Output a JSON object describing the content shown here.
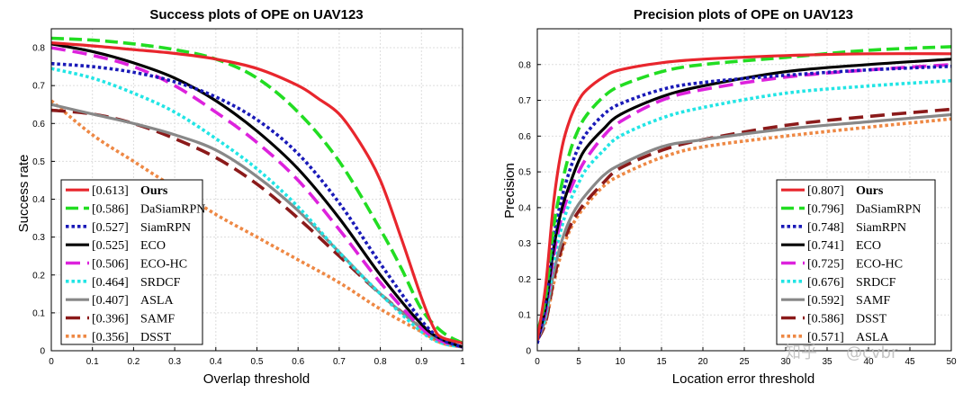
{
  "chart_data": [
    {
      "type": "line",
      "title": "Success plots of OPE on UAV123",
      "xlabel": "Overlap threshold",
      "ylabel": "Success rate",
      "xlim": [
        0,
        1
      ],
      "ylim": [
        0,
        0.85
      ],
      "xticks": [
        "0",
        "0.1",
        "0.2",
        "0.3",
        "0.4",
        "0.5",
        "0.6",
        "0.7",
        "0.8",
        "0.9",
        "1"
      ],
      "yticks": [
        "0",
        "0.1",
        "0.2",
        "0.3",
        "0.4",
        "0.5",
        "0.6",
        "0.7",
        "0.8"
      ],
      "grid": true,
      "legend_position": "bottom-left",
      "series": [
        {
          "name": "Ours",
          "score": "[0.613]",
          "bold": true,
          "color": "#e8262d",
          "dash": "solid",
          "x": [
            0,
            0.1,
            0.2,
            0.3,
            0.4,
            0.5,
            0.6,
            0.65,
            0.7,
            0.75,
            0.8,
            0.85,
            0.9,
            0.93,
            0.95,
            1
          ],
          "y": [
            0.813,
            0.805,
            0.795,
            0.785,
            0.77,
            0.745,
            0.7,
            0.665,
            0.625,
            0.55,
            0.45,
            0.3,
            0.14,
            0.06,
            0.035,
            0.02
          ]
        },
        {
          "name": "DaSiamRPN",
          "score": "[0.586]",
          "color": "#22dd22",
          "dash": "dashed",
          "x": [
            0,
            0.1,
            0.2,
            0.3,
            0.4,
            0.5,
            0.6,
            0.7,
            0.8,
            0.85,
            0.9,
            0.95,
            1
          ],
          "y": [
            0.825,
            0.82,
            0.81,
            0.795,
            0.77,
            0.72,
            0.63,
            0.5,
            0.32,
            0.22,
            0.11,
            0.05,
            0.02
          ]
        },
        {
          "name": "SiamRPN",
          "score": "[0.527]",
          "color": "#1a1ab8",
          "dash": "dotted",
          "x": [
            0,
            0.1,
            0.2,
            0.3,
            0.4,
            0.5,
            0.6,
            0.7,
            0.8,
            0.9,
            0.95,
            1
          ],
          "y": [
            0.758,
            0.75,
            0.735,
            0.71,
            0.67,
            0.61,
            0.52,
            0.39,
            0.23,
            0.08,
            0.03,
            0.01
          ]
        },
        {
          "name": "ECO",
          "score": "[0.525]",
          "color": "#000000",
          "dash": "solid",
          "x": [
            0,
            0.1,
            0.2,
            0.3,
            0.4,
            0.5,
            0.6,
            0.7,
            0.8,
            0.9,
            0.95,
            1
          ],
          "y": [
            0.81,
            0.79,
            0.76,
            0.72,
            0.66,
            0.58,
            0.48,
            0.35,
            0.2,
            0.07,
            0.03,
            0.01
          ]
        },
        {
          "name": "ECO-HC",
          "score": "[0.506]",
          "color": "#dd22dd",
          "dash": "longdash",
          "x": [
            0,
            0.1,
            0.2,
            0.3,
            0.4,
            0.5,
            0.6,
            0.7,
            0.8,
            0.9,
            0.95,
            1
          ],
          "y": [
            0.8,
            0.78,
            0.75,
            0.7,
            0.63,
            0.55,
            0.45,
            0.32,
            0.18,
            0.06,
            0.025,
            0.01
          ]
        },
        {
          "name": "SRDCF",
          "score": "[0.464]",
          "color": "#22e5e5",
          "dash": "dotted",
          "x": [
            0,
            0.1,
            0.2,
            0.3,
            0.4,
            0.5,
            0.6,
            0.7,
            0.8,
            0.9,
            0.95,
            1
          ],
          "y": [
            0.745,
            0.72,
            0.68,
            0.63,
            0.56,
            0.48,
            0.38,
            0.26,
            0.15,
            0.05,
            0.02,
            0.01
          ]
        },
        {
          "name": "ASLA",
          "score": "[0.407]",
          "color": "#888888",
          "dash": "solid",
          "x": [
            0,
            0.1,
            0.2,
            0.3,
            0.4,
            0.5,
            0.6,
            0.7,
            0.8,
            0.9,
            0.95,
            1
          ],
          "y": [
            0.65,
            0.625,
            0.6,
            0.57,
            0.53,
            0.46,
            0.37,
            0.26,
            0.15,
            0.06,
            0.025,
            0.01
          ]
        },
        {
          "name": "SAMF",
          "score": "[0.396]",
          "color": "#8b1a1a",
          "dash": "longdash",
          "x": [
            0,
            0.1,
            0.2,
            0.3,
            0.4,
            0.5,
            0.6,
            0.7,
            0.8,
            0.9,
            0.95,
            1
          ],
          "y": [
            0.635,
            0.625,
            0.6,
            0.56,
            0.51,
            0.44,
            0.35,
            0.25,
            0.15,
            0.06,
            0.025,
            0.01
          ]
        },
        {
          "name": "DSST",
          "score": "[0.356]",
          "color": "#ee8844",
          "dash": "dotted",
          "x": [
            0,
            0.1,
            0.2,
            0.3,
            0.4,
            0.5,
            0.6,
            0.7,
            0.8,
            0.9,
            0.95,
            1
          ],
          "y": [
            0.66,
            0.57,
            0.5,
            0.43,
            0.36,
            0.3,
            0.24,
            0.18,
            0.11,
            0.05,
            0.02,
            0.01
          ]
        }
      ]
    },
    {
      "type": "line",
      "title": "Precision plots of OPE on UAV123",
      "xlabel": "Location error threshold",
      "ylabel": "Precision",
      "xlim": [
        0,
        50
      ],
      "ylim": [
        0,
        0.9
      ],
      "xticks": [
        "0",
        "5",
        "10",
        "15",
        "20",
        "25",
        "30",
        "35",
        "40",
        "45",
        "50"
      ],
      "yticks": [
        "0",
        "0.1",
        "0.2",
        "0.3",
        "0.4",
        "0.5",
        "0.6",
        "0.7",
        "0.8"
      ],
      "grid": true,
      "legend_position": "bottom-right",
      "series": [
        {
          "name": "Ours",
          "score": "[0.807]",
          "bold": true,
          "color": "#e8262d",
          "dash": "solid",
          "x": [
            0,
            1,
            2,
            3,
            4,
            5,
            6,
            8,
            10,
            15,
            20,
            30,
            40,
            50
          ],
          "y": [
            0.03,
            0.18,
            0.42,
            0.57,
            0.65,
            0.7,
            0.73,
            0.765,
            0.785,
            0.805,
            0.815,
            0.825,
            0.83,
            0.83
          ]
        },
        {
          "name": "DaSiamRPN",
          "score": "[0.796]",
          "color": "#22dd22",
          "dash": "dashed",
          "x": [
            0,
            1,
            2,
            3,
            4,
            5,
            6,
            8,
            10,
            15,
            20,
            30,
            40,
            50
          ],
          "y": [
            0.05,
            0.15,
            0.35,
            0.47,
            0.56,
            0.62,
            0.66,
            0.71,
            0.74,
            0.78,
            0.8,
            0.82,
            0.84,
            0.85
          ]
        },
        {
          "name": "SiamRPN",
          "score": "[0.748]",
          "color": "#1a1ab8",
          "dash": "dotted",
          "x": [
            0,
            1,
            2,
            3,
            4,
            5,
            6,
            8,
            10,
            15,
            20,
            30,
            40,
            50
          ],
          "y": [
            0.02,
            0.13,
            0.32,
            0.43,
            0.51,
            0.57,
            0.61,
            0.66,
            0.69,
            0.73,
            0.75,
            0.77,
            0.785,
            0.795
          ]
        },
        {
          "name": "ECO",
          "score": "[0.741]",
          "color": "#000000",
          "dash": "solid",
          "x": [
            0,
            1,
            2,
            3,
            4,
            5,
            6,
            8,
            10,
            15,
            20,
            30,
            40,
            50
          ],
          "y": [
            0.03,
            0.12,
            0.29,
            0.4,
            0.47,
            0.53,
            0.57,
            0.62,
            0.66,
            0.71,
            0.74,
            0.78,
            0.8,
            0.815
          ]
        },
        {
          "name": "ECO-HC",
          "score": "[0.725]",
          "color": "#dd22dd",
          "dash": "longdash",
          "x": [
            0,
            1,
            2,
            3,
            4,
            5,
            6,
            8,
            10,
            15,
            20,
            30,
            40,
            50
          ],
          "y": [
            0.03,
            0.11,
            0.27,
            0.38,
            0.45,
            0.5,
            0.54,
            0.6,
            0.64,
            0.7,
            0.73,
            0.765,
            0.785,
            0.8
          ]
        },
        {
          "name": "SRDCF",
          "score": "[0.676]",
          "color": "#22e5e5",
          "dash": "dotted",
          "x": [
            0,
            1,
            2,
            3,
            4,
            5,
            6,
            8,
            10,
            15,
            20,
            30,
            40,
            50
          ],
          "y": [
            0.03,
            0.1,
            0.25,
            0.35,
            0.42,
            0.47,
            0.51,
            0.56,
            0.6,
            0.65,
            0.68,
            0.72,
            0.74,
            0.755
          ]
        },
        {
          "name": "SAMF",
          "score": "[0.592]",
          "color": "#888888",
          "dash": "solid",
          "x": [
            0,
            1,
            2,
            3,
            4,
            5,
            6,
            8,
            10,
            15,
            20,
            30,
            40,
            50
          ],
          "y": [
            0.03,
            0.09,
            0.22,
            0.31,
            0.37,
            0.41,
            0.44,
            0.49,
            0.52,
            0.57,
            0.59,
            0.62,
            0.64,
            0.66
          ]
        },
        {
          "name": "DSST",
          "score": "[0.586]",
          "color": "#8b1a1a",
          "dash": "longdash",
          "x": [
            0,
            1,
            2,
            3,
            4,
            5,
            6,
            8,
            10,
            15,
            20,
            30,
            40,
            50
          ],
          "y": [
            0.03,
            0.08,
            0.2,
            0.29,
            0.35,
            0.39,
            0.42,
            0.47,
            0.51,
            0.56,
            0.59,
            0.63,
            0.655,
            0.675
          ]
        },
        {
          "name": "ASLA",
          "score": "[0.571]",
          "color": "#ee8844",
          "dash": "dotted",
          "x": [
            0,
            1,
            2,
            3,
            4,
            5,
            6,
            8,
            10,
            15,
            20,
            30,
            40,
            50
          ],
          "y": [
            0.03,
            0.08,
            0.19,
            0.28,
            0.34,
            0.38,
            0.41,
            0.46,
            0.49,
            0.54,
            0.57,
            0.6,
            0.625,
            0.648
          ]
        }
      ]
    }
  ],
  "watermark": {
    "zh": "知乎",
    "at": "@cvbr"
  }
}
